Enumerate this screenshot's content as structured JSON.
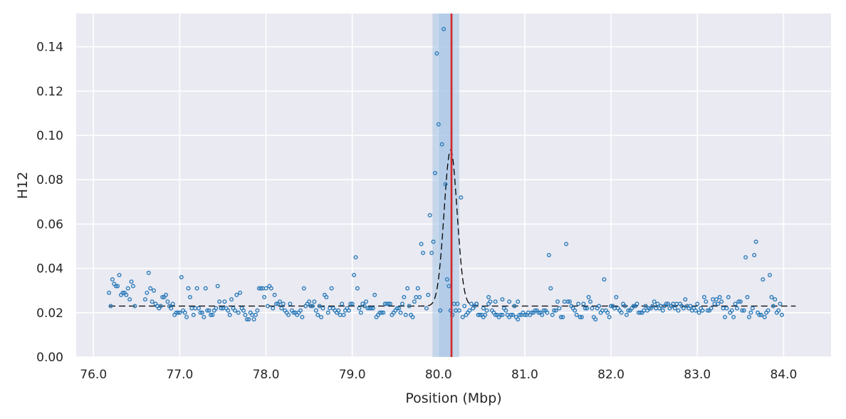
{
  "chart_data": {
    "type": "scatter",
    "title": "",
    "xlabel": "Position (Mbp)",
    "ylabel": "H12",
    "xlim": [
      75.8,
      84.55
    ],
    "ylim": [
      0.0,
      0.155
    ],
    "x_ticks": [
      76.0,
      77.0,
      78.0,
      79.0,
      80.0,
      81.0,
      82.0,
      83.0,
      84.0
    ],
    "x_tick_labels": [
      "76.0",
      "77.0",
      "78.0",
      "79.0",
      "80.0",
      "81.0",
      "82.0",
      "83.0",
      "84.0"
    ],
    "y_ticks": [
      0.0,
      0.02,
      0.04,
      0.06,
      0.08,
      0.1,
      0.12,
      0.14
    ],
    "y_tick_labels": [
      "0.00",
      "0.02",
      "0.04",
      "0.06",
      "0.08",
      "0.10",
      "0.12",
      "0.14"
    ],
    "grid": true,
    "background": "#eaeaf2",
    "point_color": "#2b7bba",
    "fit_color": "#000000",
    "peak_line_color": "#d62728",
    "peak_band_color": "#a6c4e3",
    "peak": {
      "position": 80.15,
      "band_outer": [
        79.93,
        80.24
      ],
      "band_inner": [
        80.0,
        80.17
      ]
    },
    "fit": {
      "baseline": 0.023,
      "peak_height": 0.0935,
      "peak_center": 80.14,
      "peak_width": 0.075,
      "x_range": [
        76.18,
        84.14
      ]
    },
    "points": [
      [
        76.18,
        0.029
      ],
      [
        76.2,
        0.023
      ],
      [
        76.22,
        0.035
      ],
      [
        76.24,
        0.033
      ],
      [
        76.26,
        0.032
      ],
      [
        76.28,
        0.032
      ],
      [
        76.3,
        0.037
      ],
      [
        76.32,
        0.028
      ],
      [
        76.34,
        0.029
      ],
      [
        76.36,
        0.029
      ],
      [
        76.38,
        0.028
      ],
      [
        76.4,
        0.031
      ],
      [
        76.42,
        0.026
      ],
      [
        76.44,
        0.034
      ],
      [
        76.46,
        0.032
      ],
      [
        76.48,
        0.023
      ],
      [
        76.6,
        0.026
      ],
      [
        76.62,
        0.029
      ],
      [
        76.64,
        0.038
      ],
      [
        76.66,
        0.031
      ],
      [
        76.68,
        0.025
      ],
      [
        76.7,
        0.03
      ],
      [
        76.72,
        0.024
      ],
      [
        76.74,
        0.023
      ],
      [
        76.76,
        0.022
      ],
      [
        76.78,
        0.023
      ],
      [
        76.8,
        0.027
      ],
      [
        76.82,
        0.027
      ],
      [
        76.84,
        0.028
      ],
      [
        76.86,
        0.025
      ],
      [
        76.88,
        0.023
      ],
      [
        76.9,
        0.022
      ],
      [
        76.92,
        0.024
      ],
      [
        76.94,
        0.019
      ],
      [
        76.96,
        0.02
      ],
      [
        76.98,
        0.02
      ],
      [
        77.0,
        0.02
      ],
      [
        77.02,
        0.036
      ],
      [
        77.04,
        0.021
      ],
      [
        77.06,
        0.02
      ],
      [
        77.08,
        0.018
      ],
      [
        77.1,
        0.031
      ],
      [
        77.12,
        0.027
      ],
      [
        77.14,
        0.022
      ],
      [
        77.16,
        0.019
      ],
      [
        77.18,
        0.022
      ],
      [
        77.2,
        0.031
      ],
      [
        77.22,
        0.022
      ],
      [
        77.24,
        0.02
      ],
      [
        77.26,
        0.02
      ],
      [
        77.28,
        0.018
      ],
      [
        77.3,
        0.031
      ],
      [
        77.32,
        0.021
      ],
      [
        77.34,
        0.021
      ],
      [
        77.36,
        0.019
      ],
      [
        77.38,
        0.019
      ],
      [
        77.4,
        0.021
      ],
      [
        77.42,
        0.022
      ],
      [
        77.44,
        0.032
      ],
      [
        77.46,
        0.025
      ],
      [
        77.48,
        0.022
      ],
      [
        77.5,
        0.022
      ],
      [
        77.52,
        0.025
      ],
      [
        77.54,
        0.022
      ],
      [
        77.56,
        0.021
      ],
      [
        77.58,
        0.019
      ],
      [
        77.6,
        0.026
      ],
      [
        77.62,
        0.022
      ],
      [
        77.64,
        0.021
      ],
      [
        77.66,
        0.028
      ],
      [
        77.68,
        0.02
      ],
      [
        77.7,
        0.029
      ],
      [
        77.72,
        0.022
      ],
      [
        77.74,
        0.021
      ],
      [
        77.76,
        0.019
      ],
      [
        77.78,
        0.017
      ],
      [
        77.8,
        0.017
      ],
      [
        77.82,
        0.02
      ],
      [
        77.84,
        0.019
      ],
      [
        77.86,
        0.017
      ],
      [
        77.88,
        0.019
      ],
      [
        77.9,
        0.021
      ],
      [
        77.92,
        0.031
      ],
      [
        77.94,
        0.031
      ],
      [
        77.96,
        0.031
      ],
      [
        77.98,
        0.027
      ],
      [
        78.0,
        0.031
      ],
      [
        78.02,
        0.023
      ],
      [
        78.04,
        0.032
      ],
      [
        78.06,
        0.031
      ],
      [
        78.08,
        0.022
      ],
      [
        78.1,
        0.028
      ],
      [
        78.12,
        0.024
      ],
      [
        78.14,
        0.024
      ],
      [
        78.16,
        0.025
      ],
      [
        78.18,
        0.022
      ],
      [
        78.2,
        0.024
      ],
      [
        78.22,
        0.021
      ],
      [
        78.24,
        0.02
      ],
      [
        78.26,
        0.019
      ],
      [
        78.28,
        0.024
      ],
      [
        78.3,
        0.021
      ],
      [
        78.32,
        0.02
      ],
      [
        78.34,
        0.02
      ],
      [
        78.36,
        0.019
      ],
      [
        78.38,
        0.02
      ],
      [
        78.4,
        0.021
      ],
      [
        78.42,
        0.018
      ],
      [
        78.44,
        0.031
      ],
      [
        78.46,
        0.023
      ],
      [
        78.48,
        0.024
      ],
      [
        78.5,
        0.025
      ],
      [
        78.52,
        0.023
      ],
      [
        78.54,
        0.023
      ],
      [
        78.56,
        0.025
      ],
      [
        78.58,
        0.021
      ],
      [
        78.6,
        0.019
      ],
      [
        78.62,
        0.023
      ],
      [
        78.64,
        0.018
      ],
      [
        78.66,
        0.022
      ],
      [
        78.68,
        0.028
      ],
      [
        78.7,
        0.027
      ],
      [
        78.72,
        0.02
      ],
      [
        78.74,
        0.022
      ],
      [
        78.76,
        0.031
      ],
      [
        78.78,
        0.022
      ],
      [
        78.8,
        0.021
      ],
      [
        78.82,
        0.02
      ],
      [
        78.84,
        0.021
      ],
      [
        78.86,
        0.019
      ],
      [
        78.88,
        0.024
      ],
      [
        78.9,
        0.019
      ],
      [
        78.92,
        0.021
      ],
      [
        78.94,
        0.022
      ],
      [
        78.96,
        0.021
      ],
      [
        78.98,
        0.024
      ],
      [
        79.0,
        0.024
      ],
      [
        79.02,
        0.037
      ],
      [
        79.04,
        0.045
      ],
      [
        79.06,
        0.031
      ],
      [
        79.08,
        0.022
      ],
      [
        79.1,
        0.02
      ],
      [
        79.12,
        0.024
      ],
      [
        79.14,
        0.023
      ],
      [
        79.16,
        0.025
      ],
      [
        79.18,
        0.022
      ],
      [
        79.2,
        0.022
      ],
      [
        79.22,
        0.022
      ],
      [
        79.24,
        0.022
      ],
      [
        79.26,
        0.028
      ],
      [
        79.28,
        0.018
      ],
      [
        79.3,
        0.019
      ],
      [
        79.32,
        0.02
      ],
      [
        79.34,
        0.02
      ],
      [
        79.36,
        0.02
      ],
      [
        79.38,
        0.024
      ],
      [
        79.4,
        0.024
      ],
      [
        79.42,
        0.024
      ],
      [
        79.44,
        0.024
      ],
      [
        79.46,
        0.019
      ],
      [
        79.48,
        0.02
      ],
      [
        79.5,
        0.021
      ],
      [
        79.52,
        0.022
      ],
      [
        79.54,
        0.022
      ],
      [
        79.56,
        0.02
      ],
      [
        79.58,
        0.024
      ],
      [
        79.6,
        0.027
      ],
      [
        79.62,
        0.019
      ],
      [
        79.64,
        0.031
      ],
      [
        79.66,
        0.023
      ],
      [
        79.68,
        0.019
      ],
      [
        79.7,
        0.018
      ],
      [
        79.72,
        0.025
      ],
      [
        79.74,
        0.027
      ],
      [
        79.76,
        0.031
      ],
      [
        79.78,
        0.027
      ],
      [
        79.8,
        0.051
      ],
      [
        79.82,
        0.047
      ],
      [
        79.86,
        0.022
      ],
      [
        79.88,
        0.028
      ],
      [
        79.9,
        0.064
      ],
      [
        79.92,
        0.047
      ],
      [
        79.94,
        0.052
      ],
      [
        79.96,
        0.083
      ],
      [
        79.98,
        0.137
      ],
      [
        80.0,
        0.105
      ],
      [
        80.02,
        0.021
      ],
      [
        80.04,
        0.096
      ],
      [
        80.06,
        0.148
      ],
      [
        80.08,
        0.078
      ],
      [
        80.1,
        0.035
      ],
      [
        80.12,
        0.032
      ],
      [
        80.14,
        0.021
      ],
      [
        80.16,
        0.019
      ],
      [
        80.18,
        0.024
      ],
      [
        80.2,
        0.021
      ],
      [
        80.22,
        0.024
      ],
      [
        80.24,
        0.021
      ],
      [
        80.26,
        0.072
      ],
      [
        80.28,
        0.018
      ],
      [
        80.3,
        0.023
      ],
      [
        80.32,
        0.019
      ],
      [
        80.34,
        0.02
      ],
      [
        80.36,
        0.021
      ],
      [
        80.38,
        0.024
      ],
      [
        80.4,
        0.022
      ],
      [
        80.42,
        0.023
      ],
      [
        80.44,
        0.024
      ],
      [
        80.46,
        0.019
      ],
      [
        80.48,
        0.019
      ],
      [
        80.5,
        0.019
      ],
      [
        80.52,
        0.018
      ],
      [
        80.54,
        0.019
      ],
      [
        80.56,
        0.021
      ],
      [
        80.58,
        0.027
      ],
      [
        80.6,
        0.025
      ],
      [
        80.62,
        0.021
      ],
      [
        80.64,
        0.02
      ],
      [
        80.66,
        0.019
      ],
      [
        80.68,
        0.019
      ],
      [
        80.7,
        0.018
      ],
      [
        80.72,
        0.019
      ],
      [
        80.74,
        0.019
      ],
      [
        80.76,
        0.022
      ],
      [
        80.78,
        0.021
      ],
      [
        80.8,
        0.019
      ],
      [
        80.82,
        0.018
      ],
      [
        80.84,
        0.019
      ],
      [
        80.86,
        0.019
      ],
      [
        80.88,
        0.023
      ],
      [
        80.9,
        0.018
      ],
      [
        80.92,
        0.017
      ],
      [
        80.94,
        0.019
      ],
      [
        80.96,
        0.019
      ],
      [
        80.98,
        0.02
      ],
      [
        81.0,
        0.019
      ],
      [
        81.02,
        0.019
      ],
      [
        81.04,
        0.02
      ],
      [
        81.06,
        0.019
      ],
      [
        81.08,
        0.02
      ],
      [
        81.1,
        0.02
      ],
      [
        81.12,
        0.021
      ],
      [
        81.14,
        0.021
      ],
      [
        81.16,
        0.02
      ],
      [
        81.18,
        0.02
      ],
      [
        81.2,
        0.019
      ],
      [
        81.22,
        0.021
      ],
      [
        81.24,
        0.021
      ],
      [
        81.26,
        0.02
      ],
      [
        81.28,
        0.046
      ],
      [
        81.3,
        0.031
      ],
      [
        81.32,
        0.019
      ],
      [
        81.34,
        0.021
      ],
      [
        81.36,
        0.021
      ],
      [
        81.38,
        0.025
      ],
      [
        81.4,
        0.022
      ],
      [
        81.42,
        0.018
      ],
      [
        81.44,
        0.018
      ],
      [
        81.46,
        0.025
      ],
      [
        81.48,
        0.051
      ],
      [
        81.5,
        0.025
      ],
      [
        81.52,
        0.025
      ],
      [
        81.54,
        0.023
      ],
      [
        81.56,
        0.022
      ],
      [
        81.58,
        0.021
      ],
      [
        81.6,
        0.019
      ],
      [
        81.62,
        0.024
      ],
      [
        81.64,
        0.018
      ],
      [
        81.66,
        0.018
      ],
      [
        81.68,
        0.024
      ],
      [
        81.7,
        0.022
      ],
      [
        81.72,
        0.022
      ],
      [
        81.74,
        0.027
      ],
      [
        81.76,
        0.025
      ],
      [
        81.78,
        0.022
      ],
      [
        81.8,
        0.018
      ],
      [
        81.82,
        0.017
      ],
      [
        81.84,
        0.022
      ],
      [
        81.86,
        0.023
      ],
      [
        81.88,
        0.02
      ],
      [
        81.9,
        0.021
      ],
      [
        81.92,
        0.035
      ],
      [
        81.94,
        0.021
      ],
      [
        81.96,
        0.02
      ],
      [
        81.98,
        0.018
      ],
      [
        82.0,
        0.023
      ],
      [
        82.02,
        0.023
      ],
      [
        82.04,
        0.022
      ],
      [
        82.06,
        0.027
      ],
      [
        82.08,
        0.022
      ],
      [
        82.1,
        0.021
      ],
      [
        82.12,
        0.02
      ],
      [
        82.14,
        0.024
      ],
      [
        82.16,
        0.023
      ],
      [
        82.18,
        0.019
      ],
      [
        82.2,
        0.021
      ],
      [
        82.22,
        0.021
      ],
      [
        82.24,
        0.022
      ],
      [
        82.26,
        0.023
      ],
      [
        82.28,
        0.023
      ],
      [
        82.3,
        0.024
      ],
      [
        82.32,
        0.02
      ],
      [
        82.34,
        0.02
      ],
      [
        82.36,
        0.02
      ],
      [
        82.38,
        0.021
      ],
      [
        82.4,
        0.023
      ],
      [
        82.42,
        0.021
      ],
      [
        82.44,
        0.022
      ],
      [
        82.46,
        0.022
      ],
      [
        82.48,
        0.023
      ],
      [
        82.5,
        0.025
      ],
      [
        82.52,
        0.022
      ],
      [
        82.54,
        0.024
      ],
      [
        82.56,
        0.022
      ],
      [
        82.58,
        0.023
      ],
      [
        82.6,
        0.021
      ],
      [
        82.62,
        0.023
      ],
      [
        82.64,
        0.024
      ],
      [
        82.66,
        0.024
      ],
      [
        82.68,
        0.022
      ],
      [
        82.7,
        0.023
      ],
      [
        82.72,
        0.024
      ],
      [
        82.74,
        0.022
      ],
      [
        82.76,
        0.024
      ],
      [
        82.78,
        0.021
      ],
      [
        82.8,
        0.024
      ],
      [
        82.82,
        0.023
      ],
      [
        82.84,
        0.022
      ],
      [
        82.86,
        0.026
      ],
      [
        82.88,
        0.023
      ],
      [
        82.9,
        0.022
      ],
      [
        82.92,
        0.023
      ],
      [
        82.94,
        0.021
      ],
      [
        82.96,
        0.022
      ],
      [
        82.98,
        0.021
      ],
      [
        83.0,
        0.024
      ],
      [
        83.02,
        0.02
      ],
      [
        83.04,
        0.022
      ],
      [
        83.06,
        0.021
      ],
      [
        83.08,
        0.027
      ],
      [
        83.1,
        0.025
      ],
      [
        83.12,
        0.021
      ],
      [
        83.14,
        0.021
      ],
      [
        83.16,
        0.022
      ],
      [
        83.18,
        0.026
      ],
      [
        83.2,
        0.024
      ],
      [
        83.22,
        0.026
      ],
      [
        83.24,
        0.024
      ],
      [
        83.26,
        0.027
      ],
      [
        83.28,
        0.025
      ],
      [
        83.3,
        0.022
      ],
      [
        83.32,
        0.018
      ],
      [
        83.34,
        0.022
      ],
      [
        83.36,
        0.027
      ],
      [
        83.38,
        0.02
      ],
      [
        83.4,
        0.021
      ],
      [
        83.42,
        0.018
      ],
      [
        83.44,
        0.024
      ],
      [
        83.46,
        0.022
      ],
      [
        83.48,
        0.025
      ],
      [
        83.5,
        0.025
      ],
      [
        83.52,
        0.021
      ],
      [
        83.54,
        0.021
      ],
      [
        83.56,
        0.045
      ],
      [
        83.58,
        0.027
      ],
      [
        83.6,
        0.018
      ],
      [
        83.62,
        0.02
      ],
      [
        83.64,
        0.022
      ],
      [
        83.66,
        0.046
      ],
      [
        83.68,
        0.052
      ],
      [
        83.7,
        0.02
      ],
      [
        83.72,
        0.019
      ],
      [
        83.74,
        0.019
      ],
      [
        83.76,
        0.035
      ],
      [
        83.78,
        0.018
      ],
      [
        83.8,
        0.02
      ],
      [
        83.82,
        0.021
      ],
      [
        83.84,
        0.037
      ],
      [
        83.86,
        0.027
      ],
      [
        83.88,
        0.023
      ],
      [
        83.9,
        0.026
      ],
      [
        83.92,
        0.02
      ],
      [
        83.94,
        0.021
      ],
      [
        83.96,
        0.024
      ],
      [
        83.98,
        0.019
      ],
      [
        80.44,
        0.024
      ],
      [
        80.52,
        0.022
      ],
      [
        80.58,
        0.024
      ],
      [
        80.66,
        0.025
      ],
      [
        80.74,
        0.026
      ],
      [
        80.82,
        0.025
      ],
      [
        80.88,
        0.023
      ],
      [
        80.92,
        0.025
      ]
    ]
  }
}
